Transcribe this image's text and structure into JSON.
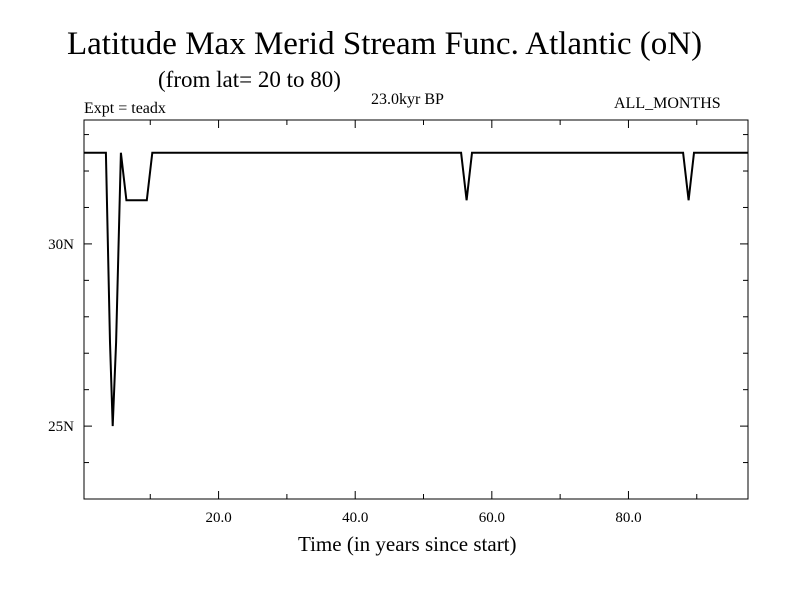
{
  "header": {
    "title": "Latitude Max Merid Stream Func. Atlantic (oN)",
    "subtitle": "(from lat= 20 to 80)",
    "experiment": "Expt = teadx",
    "period": "23.0kyr BP",
    "months": "ALL_MONTHS"
  },
  "chart_data": {
    "type": "line",
    "title": "Latitude Max Merid Stream Func. Atlantic (oN)",
    "subtitle": "(from lat= 20 to 80)",
    "xlabel": "Time (in years since start)",
    "ylabel": "",
    "xlim": [
      0.3,
      97.5
    ],
    "ylim": [
      23.0,
      33.4
    ],
    "x_ticks": [
      {
        "value": 20,
        "label": "20.0"
      },
      {
        "value": 40,
        "label": "40.0"
      },
      {
        "value": 60,
        "label": "60.0"
      },
      {
        "value": 80,
        "label": "80.0"
      }
    ],
    "y_ticks": [
      {
        "value": 25,
        "label": "25N"
      },
      {
        "value": 30,
        "label": "30N"
      }
    ],
    "x_minor_step": 10,
    "y_minor_step": 1,
    "grid": false,
    "series": [
      {
        "name": "",
        "color": "#000000",
        "x": [
          0.3,
          3.5,
          4.1,
          4.5,
          5.0,
          5.7,
          6.5,
          9.5,
          10.3,
          49.0,
          55.5,
          56.3,
          57.1,
          88.0,
          88.8,
          89.6,
          97.5
        ],
        "y": [
          32.5,
          32.5,
          27.3,
          25.0,
          27.3,
          32.5,
          31.2,
          31.2,
          32.5,
          32.5,
          32.5,
          31.2,
          32.5,
          32.5,
          31.2,
          32.5,
          32.5
        ]
      }
    ]
  }
}
